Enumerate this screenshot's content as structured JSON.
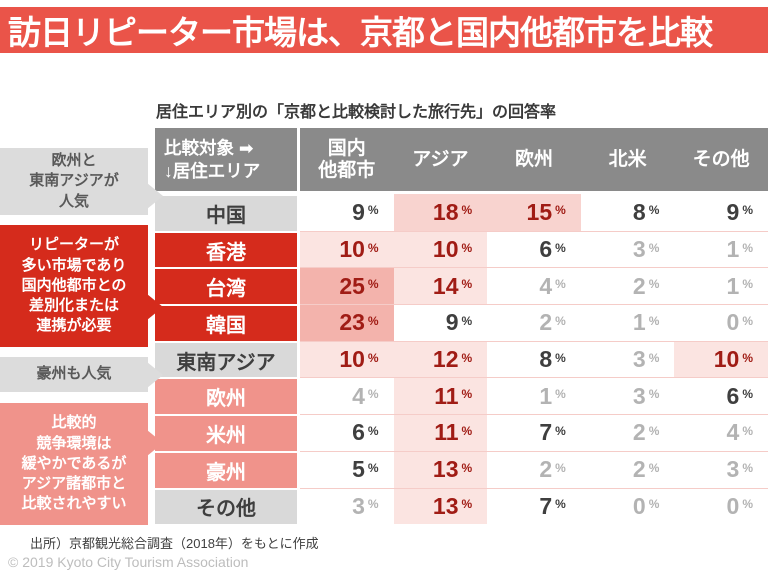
{
  "title": "訪日リピーター市場は、京都と国内他都市を比較",
  "subtitle": "居住エリア別の「京都と比較検討した旅行先」の回答率",
  "colors": {
    "title_bar_red": "#ea5449",
    "header_gray": "#8a8a8a",
    "row_label_red": "#d52b1c",
    "row_label_salmon": "#f0938b",
    "row_label_gray": "#d9d9d9",
    "cell_pink_light": "#fbe4e1",
    "cell_pink_medium": "#f8d3cf",
    "cell_pink_strong": "#f3b3ac",
    "value_red": "#a01c15",
    "value_dark": "#3f3f3f",
    "value_gray": "#b3b3b3"
  },
  "table": {
    "corner": {
      "line1": "比較対象 ➡",
      "line2": "↓居住エリア"
    },
    "columns": [
      "国内\n他都市",
      "アジア",
      "欧州",
      "北米",
      "その他"
    ],
    "rows": [
      {
        "label": "中国",
        "style": "gray",
        "cells": [
          {
            "value": "9",
            "unit": "%",
            "bg": "none",
            "tone": "dark"
          },
          {
            "value": "18",
            "unit": "%",
            "bg": "medium",
            "tone": "red"
          },
          {
            "value": "15",
            "unit": "%",
            "bg": "medium",
            "tone": "red"
          },
          {
            "value": "8",
            "unit": "%",
            "bg": "none",
            "tone": "dark"
          },
          {
            "value": "9",
            "unit": "%",
            "bg": "none",
            "tone": "dark"
          }
        ]
      },
      {
        "label": "香港",
        "style": "red",
        "cells": [
          {
            "value": "10",
            "unit": "%",
            "bg": "light",
            "tone": "red"
          },
          {
            "value": "10",
            "unit": "%",
            "bg": "light",
            "tone": "red"
          },
          {
            "value": "6",
            "unit": "%",
            "bg": "none",
            "tone": "dark"
          },
          {
            "value": "3",
            "unit": "%",
            "bg": "none",
            "tone": "gray"
          },
          {
            "value": "1",
            "unit": "%",
            "bg": "none",
            "tone": "gray"
          }
        ]
      },
      {
        "label": "台湾",
        "style": "red",
        "cells": [
          {
            "value": "25",
            "unit": "%",
            "bg": "strong",
            "tone": "red"
          },
          {
            "value": "14",
            "unit": "%",
            "bg": "light",
            "tone": "red"
          },
          {
            "value": "4",
            "unit": "%",
            "bg": "none",
            "tone": "gray"
          },
          {
            "value": "2",
            "unit": "%",
            "bg": "none",
            "tone": "gray"
          },
          {
            "value": "1",
            "unit": "%",
            "bg": "none",
            "tone": "gray"
          }
        ]
      },
      {
        "label": "韓国",
        "style": "red",
        "cells": [
          {
            "value": "23",
            "unit": "%",
            "bg": "strong",
            "tone": "red"
          },
          {
            "value": "9",
            "unit": "%",
            "bg": "none",
            "tone": "dark"
          },
          {
            "value": "2",
            "unit": "%",
            "bg": "none",
            "tone": "gray"
          },
          {
            "value": "1",
            "unit": "%",
            "bg": "none",
            "tone": "gray"
          },
          {
            "value": "0",
            "unit": "%",
            "bg": "none",
            "tone": "gray"
          }
        ]
      },
      {
        "label": "東南アジア",
        "style": "gray",
        "cells": [
          {
            "value": "10",
            "unit": "%",
            "bg": "light",
            "tone": "red"
          },
          {
            "value": "12",
            "unit": "%",
            "bg": "light",
            "tone": "red"
          },
          {
            "value": "8",
            "unit": "%",
            "bg": "none",
            "tone": "dark"
          },
          {
            "value": "3",
            "unit": "%",
            "bg": "none",
            "tone": "gray"
          },
          {
            "value": "10",
            "unit": "%",
            "bg": "light",
            "tone": "red"
          }
        ]
      },
      {
        "label": "欧州",
        "style": "salmon",
        "cells": [
          {
            "value": "4",
            "unit": "%",
            "bg": "none",
            "tone": "gray"
          },
          {
            "value": "11",
            "unit": "%",
            "bg": "light",
            "tone": "red"
          },
          {
            "value": "1",
            "unit": "%",
            "bg": "none",
            "tone": "gray"
          },
          {
            "value": "3",
            "unit": "%",
            "bg": "none",
            "tone": "gray"
          },
          {
            "value": "6",
            "unit": "%",
            "bg": "none",
            "tone": "dark"
          }
        ]
      },
      {
        "label": "米州",
        "style": "salmon",
        "cells": [
          {
            "value": "6",
            "unit": "%",
            "bg": "none",
            "tone": "dark"
          },
          {
            "value": "11",
            "unit": "%",
            "bg": "light",
            "tone": "red"
          },
          {
            "value": "7",
            "unit": "%",
            "bg": "none",
            "tone": "dark"
          },
          {
            "value": "2",
            "unit": "%",
            "bg": "none",
            "tone": "gray"
          },
          {
            "value": "4",
            "unit": "%",
            "bg": "none",
            "tone": "gray"
          }
        ]
      },
      {
        "label": "豪州",
        "style": "salmon",
        "cells": [
          {
            "value": "5",
            "unit": "%",
            "bg": "none",
            "tone": "dark"
          },
          {
            "value": "13",
            "unit": "%",
            "bg": "light",
            "tone": "red"
          },
          {
            "value": "2",
            "unit": "%",
            "bg": "none",
            "tone": "gray"
          },
          {
            "value": "2",
            "unit": "%",
            "bg": "none",
            "tone": "gray"
          },
          {
            "value": "3",
            "unit": "%",
            "bg": "none",
            "tone": "gray"
          }
        ]
      },
      {
        "label": "その他",
        "style": "gray",
        "cells": [
          {
            "value": "3",
            "unit": "%",
            "bg": "none",
            "tone": "gray"
          },
          {
            "value": "13",
            "unit": "%",
            "bg": "light",
            "tone": "red"
          },
          {
            "value": "7",
            "unit": "%",
            "bg": "none",
            "tone": "dark"
          },
          {
            "value": "0",
            "unit": "%",
            "bg": "none",
            "tone": "gray"
          },
          {
            "value": "0",
            "unit": "%",
            "bg": "none",
            "tone": "gray"
          }
        ]
      }
    ]
  },
  "annotations": [
    {
      "text": "欧州と\n東南アジアが\n人気",
      "style": "gray"
    },
    {
      "text": "リピーターが\n多い市場であり\n国内他都市との\n差別化または\n連携が必要",
      "style": "red"
    },
    {
      "text": "豪州も人気",
      "style": "gray"
    },
    {
      "text": "比較的\n競争環境は\n緩やかであるが\nアジア諸都市と\n比較されやすい",
      "style": "salmon"
    }
  ],
  "source": "出所）京都観光総合調査（2018年）をもとに作成",
  "copyright": "© 2019 Kyoto City Tourism Association",
  "chart_data": {
    "type": "table",
    "title": "居住エリア別の「京都と比較検討した旅行先」の回答率",
    "columns": [
      "国内他都市",
      "アジア",
      "欧州",
      "北米",
      "その他"
    ],
    "row_labels": [
      "中国",
      "香港",
      "台湾",
      "韓国",
      "東南アジア",
      "欧州",
      "米州",
      "豪州",
      "その他"
    ],
    "values_percent": [
      [
        9,
        18,
        15,
        8,
        9
      ],
      [
        10,
        10,
        6,
        3,
        1
      ],
      [
        25,
        14,
        4,
        2,
        1
      ],
      [
        23,
        9,
        2,
        1,
        0
      ],
      [
        10,
        12,
        8,
        3,
        10
      ],
      [
        4,
        11,
        1,
        3,
        6
      ],
      [
        6,
        11,
        7,
        2,
        4
      ],
      [
        5,
        13,
        2,
        2,
        3
      ],
      [
        3,
        13,
        7,
        0,
        0
      ]
    ],
    "unit": "%",
    "highlight_rule": "cells ≥10% shaded pink (deeper pink for higher values), values ≥5% dark text, values <5% light gray text"
  }
}
